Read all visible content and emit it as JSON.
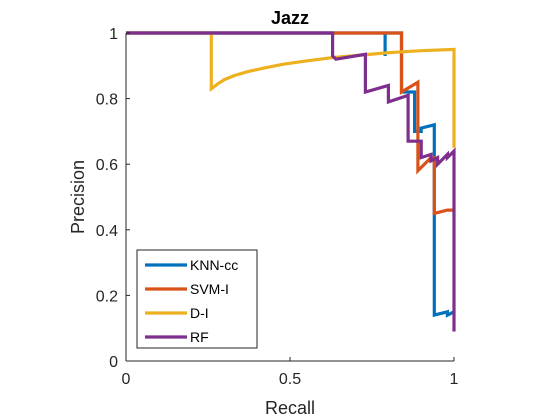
{
  "chart_data": {
    "type": "line",
    "title": "Jazz",
    "xlabel": "Recall",
    "ylabel": "Precision",
    "xlim": [
      0,
      1
    ],
    "ylim": [
      0,
      1
    ],
    "xticks": [
      0,
      0.5,
      1
    ],
    "xtick_labels": [
      "0",
      "0.5",
      "1"
    ],
    "yticks": [
      0,
      0.2,
      0.4,
      0.6,
      0.8,
      1
    ],
    "ytick_labels": [
      "0",
      "0.2",
      "0.4",
      "0.6",
      "0.8",
      "1"
    ],
    "grid": false,
    "legend_position": "bottom-left",
    "series": [
      {
        "name": "KNN-cc",
        "color": "#0072BD",
        "points": [
          [
            0,
            1
          ],
          [
            0.79,
            1
          ],
          [
            0.79,
            0.93
          ],
          [
            0.79,
            1
          ],
          [
            0.84,
            1
          ],
          [
            0.84,
            0.82
          ],
          [
            0.88,
            0.82
          ],
          [
            0.88,
            0.7
          ],
          [
            0.9,
            0.7
          ],
          [
            0.9,
            0.71
          ],
          [
            0.94,
            0.72
          ],
          [
            0.94,
            0.14
          ],
          [
            0.98,
            0.15
          ],
          [
            0.98,
            0.14
          ],
          [
            1,
            0.15
          ]
        ]
      },
      {
        "name": "SVM-I",
        "color": "#D95319",
        "points": [
          [
            0,
            1
          ],
          [
            0.84,
            1
          ],
          [
            0.84,
            0.82
          ],
          [
            0.89,
            0.85
          ],
          [
            0.89,
            0.58
          ],
          [
            0.93,
            0.62
          ],
          [
            0.94,
            0.62
          ],
          [
            0.94,
            0.45
          ],
          [
            0.98,
            0.46
          ],
          [
            1,
            0.46
          ]
        ]
      },
      {
        "name": "D-I",
        "color": "#EDB120",
        "points": [
          [
            0,
            1
          ],
          [
            0.26,
            1
          ],
          [
            0.26,
            0.83
          ],
          [
            0.28,
            0.845
          ],
          [
            0.3,
            0.858
          ],
          [
            0.33,
            0.87
          ],
          [
            0.37,
            0.882
          ],
          [
            0.42,
            0.893
          ],
          [
            0.48,
            0.905
          ],
          [
            0.55,
            0.915
          ],
          [
            0.63,
            0.925
          ],
          [
            0.72,
            0.933
          ],
          [
            0.8,
            0.94
          ],
          [
            0.9,
            0.946
          ],
          [
            1,
            0.95
          ],
          [
            1,
            0.65
          ]
        ]
      },
      {
        "name": "RF",
        "color": "#7E2F8E",
        "points": [
          [
            0,
            1
          ],
          [
            0.63,
            1
          ],
          [
            0.63,
            0.93
          ],
          [
            0.64,
            0.92
          ],
          [
            0.73,
            0.935
          ],
          [
            0.73,
            0.82
          ],
          [
            0.8,
            0.84
          ],
          [
            0.8,
            0.79
          ],
          [
            0.86,
            0.81
          ],
          [
            0.86,
            0.67
          ],
          [
            0.9,
            0.67
          ],
          [
            0.9,
            0.62
          ],
          [
            0.93,
            0.63
          ],
          [
            0.93,
            0.61
          ],
          [
            0.95,
            0.62
          ],
          [
            0.95,
            0.6
          ],
          [
            0.98,
            0.63
          ],
          [
            0.98,
            0.62
          ],
          [
            1,
            0.64
          ],
          [
            1,
            0.09
          ]
        ]
      }
    ]
  }
}
